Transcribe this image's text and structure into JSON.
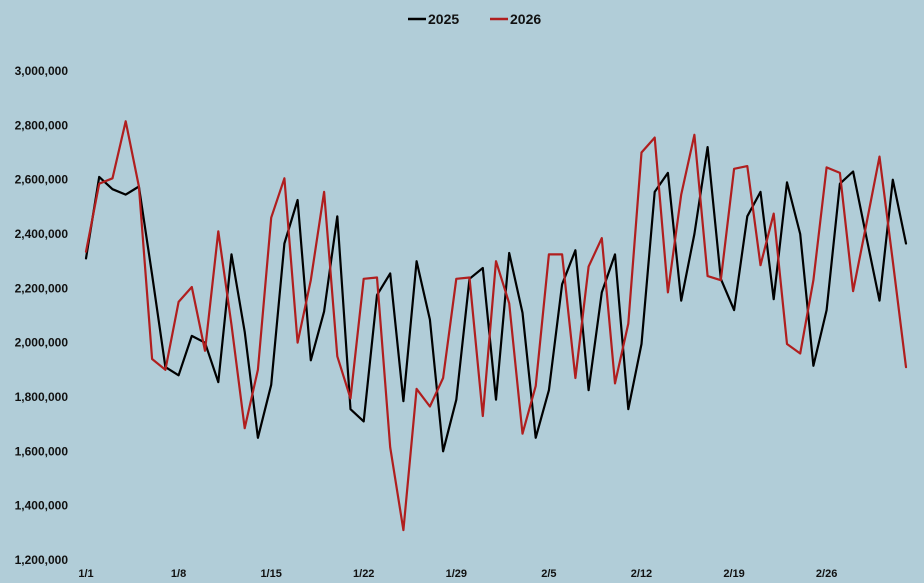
{
  "chart_data": {
    "type": "line",
    "title": "",
    "xlabel": "",
    "ylabel": "",
    "ylim": [
      1200000,
      3000000
    ],
    "yticks": [
      1200000,
      1400000,
      1600000,
      1800000,
      2000000,
      2200000,
      2400000,
      2600000,
      2800000,
      3000000
    ],
    "ytick_labels": [
      "1,200,000",
      "1,400,000",
      "1,600,000",
      "1,800,000",
      "2,000,000",
      "2,200,000",
      "2,400,000",
      "2,600,000",
      "2,800,000",
      "3,000,000"
    ],
    "xtick_labels": [
      "1/1",
      "1/8",
      "1/15",
      "1/22",
      "1/29",
      "2/5",
      "2/12",
      "2/19",
      "2/26"
    ],
    "xtick_days": [
      1,
      8,
      15,
      22,
      29,
      36,
      43,
      50,
      57
    ],
    "x_days": [
      1,
      2,
      3,
      4,
      5,
      6,
      7,
      8,
      9,
      10,
      11,
      12,
      13,
      14,
      15,
      16,
      17,
      18,
      19,
      20,
      21,
      22,
      23,
      24,
      25,
      26,
      27,
      28,
      29,
      30,
      31,
      32,
      33,
      34,
      35,
      36,
      37,
      38,
      39,
      40,
      41,
      42,
      43,
      44,
      45,
      46,
      47,
      48,
      49,
      50,
      51,
      52,
      53,
      54,
      55,
      56,
      57,
      58,
      59,
      60,
      61,
      62,
      63
    ],
    "grid": false,
    "legend": "top-center",
    "series": [
      {
        "name": "2025",
        "color": "#000000",
        "values": [
          2310000,
          2610000,
          2565000,
          2545000,
          2575000,
          2250000,
          1910000,
          1880000,
          2025000,
          2000000,
          1855000,
          2325000,
          2040000,
          1650000,
          1845000,
          2365000,
          2525000,
          1935000,
          2115000,
          2465000,
          1755000,
          1710000,
          2175000,
          2255000,
          1785000,
          2300000,
          2085000,
          1600000,
          1790000,
          2235000,
          2275000,
          1790000,
          2330000,
          2110000,
          1650000,
          1825000,
          2215000,
          2340000,
          1825000,
          2185000,
          2325000,
          1755000,
          1995000,
          2555000,
          2625000,
          2155000,
          2400000,
          2720000,
          2235000,
          2120000,
          2465000,
          2555000,
          2160000,
          2590000,
          2400000,
          1915000,
          2120000,
          2585000,
          2630000,
          2390000,
          2155000,
          2600000,
          2365000
        ]
      },
      {
        "name": "2026",
        "color": "#b01e1e",
        "values": [
          2335000,
          2585000,
          2605000,
          2815000,
          2575000,
          1940000,
          1900000,
          2150000,
          2205000,
          1970000,
          2410000,
          2065000,
          1685000,
          1900000,
          2460000,
          2605000,
          2000000,
          2230000,
          2555000,
          1950000,
          1795000,
          2235000,
          2240000,
          1615000,
          1310000,
          1830000,
          1765000,
          1870000,
          2235000,
          2240000,
          1730000,
          2300000,
          2145000,
          1665000,
          1840000,
          2325000,
          2325000,
          1870000,
          2280000,
          2385000,
          1850000,
          2070000,
          2700000,
          2755000,
          2185000,
          2545000,
          2765000,
          2245000,
          2230000,
          2640000,
          2650000,
          2285000,
          2475000,
          1995000,
          1960000,
          2230000,
          2645000,
          2625000,
          2190000,
          2435000,
          2685000,
          2300000,
          1910000
        ]
      }
    ]
  }
}
